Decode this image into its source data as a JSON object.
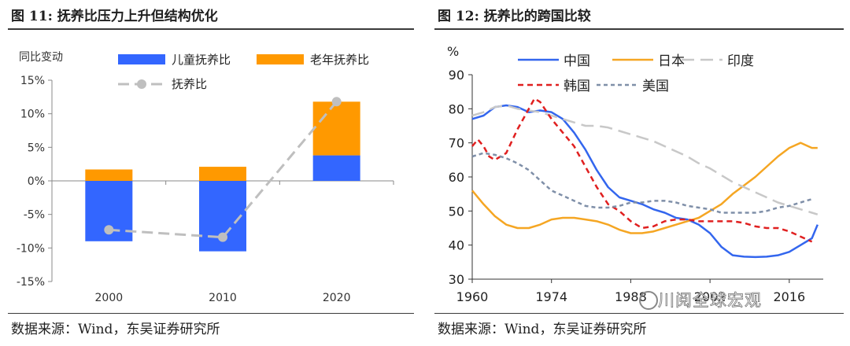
{
  "left": {
    "title": "图 11:  抚养比压力上升但结构优化",
    "source": "数据来源：Wind，东吴证券研究所"
  },
  "right": {
    "title": "图 12:   抚养比的跨国比较",
    "source": "数据来源：Wind，东吴证券研究所"
  },
  "watermark": "川阅全球宏观",
  "chart_data": [
    {
      "type": "bar",
      "stacked": true,
      "ylabel": "同比变动",
      "categories": [
        "2000",
        "2010",
        "2020"
      ],
      "ylim": [
        -15,
        15
      ],
      "yticks": [
        -15,
        -10,
        -5,
        0,
        5,
        10,
        15
      ],
      "ytick_labels": [
        "-15%",
        "-10%",
        "-5%",
        "0%",
        "5%",
        "10%",
        "15%"
      ],
      "series": [
        {
          "name": "儿童抚养比",
          "kind": "bar",
          "color": "#3366ff",
          "values": [
            -9.0,
            -10.5,
            3.8
          ]
        },
        {
          "name": "老年抚养比",
          "kind": "bar",
          "color": "#ff9900",
          "values": [
            1.7,
            2.1,
            8.0
          ]
        },
        {
          "name": "抚养比",
          "kind": "line",
          "color": "#bfbfbf",
          "values": [
            -7.3,
            -8.4,
            11.8
          ]
        }
      ],
      "legend_position": "top"
    },
    {
      "type": "line",
      "ylabel": "%",
      "xlim": [
        1960,
        2022
      ],
      "xticks": [
        1960,
        1974,
        1988,
        2002,
        2016
      ],
      "ylim": [
        30,
        90
      ],
      "yticks": [
        30,
        40,
        50,
        60,
        70,
        80,
        90
      ],
      "series": [
        {
          "name": "中国",
          "color": "#3366ee",
          "dash": "solid",
          "x": [
            1960,
            1962,
            1964,
            1966,
            1968,
            1970,
            1972,
            1974,
            1976,
            1978,
            1980,
            1982,
            1984,
            1986,
            1988,
            1990,
            1992,
            1994,
            1996,
            1998,
            2000,
            2002,
            2004,
            2006,
            2008,
            2010,
            2012,
            2014,
            2016,
            2018,
            2020,
            2021
          ],
          "y": [
            77,
            78,
            80.5,
            81,
            80.5,
            79,
            79.5,
            79,
            77,
            73,
            68,
            62,
            57,
            54,
            53,
            52,
            50.5,
            49.5,
            48,
            47.5,
            46,
            43.5,
            39.5,
            37,
            36.6,
            36.5,
            36.6,
            37,
            38,
            40,
            42,
            46
          ]
        },
        {
          "name": "日本",
          "color": "#f5a623",
          "dash": "solid",
          "x": [
            1960,
            1962,
            1964,
            1966,
            1968,
            1970,
            1972,
            1974,
            1976,
            1978,
            1980,
            1982,
            1984,
            1986,
            1988,
            1990,
            1992,
            1994,
            1996,
            1998,
            2000,
            2002,
            2004,
            2006,
            2008,
            2010,
            2012,
            2014,
            2016,
            2018,
            2020,
            2021
          ],
          "y": [
            56,
            52,
            48.5,
            46,
            45,
            45,
            46,
            47.5,
            48,
            48,
            47.5,
            47,
            46,
            44.5,
            43.5,
            43.5,
            44,
            45,
            46,
            47,
            48,
            50,
            52,
            55,
            57.5,
            60,
            63,
            66,
            68.5,
            70,
            68.5,
            68.5
          ]
        },
        {
          "name": "印度",
          "color": "#c8c8c8",
          "dash": "long",
          "x": [
            1960,
            1962,
            1964,
            1966,
            1968,
            1970,
            1972,
            1974,
            1976,
            1978,
            1980,
            1982,
            1984,
            1986,
            1988,
            1990,
            1992,
            1994,
            1996,
            1998,
            2000,
            2002,
            2004,
            2006,
            2008,
            2010,
            2012,
            2014,
            2016,
            2018,
            2020,
            2021
          ],
          "y": [
            78,
            79,
            80.5,
            81,
            80,
            79.5,
            79,
            78,
            77,
            76,
            75,
            75,
            74.5,
            73.5,
            72.5,
            71.5,
            70.5,
            69,
            67.5,
            66,
            64,
            62.5,
            60.5,
            58.5,
            57,
            55.5,
            54,
            52.5,
            51.5,
            50.5,
            49.5,
            49
          ]
        },
        {
          "name": "韩国",
          "color": "#e02020",
          "dash": "short",
          "x": [
            1960,
            1961,
            1962,
            1963,
            1964,
            1966,
            1968,
            1970,
            1971,
            1972,
            1974,
            1976,
            1978,
            1980,
            1982,
            1984,
            1986,
            1988,
            1990,
            1992,
            1994,
            1996,
            1998,
            2000,
            2002,
            2004,
            2006,
            2008,
            2010,
            2012,
            2014,
            2016,
            2018,
            2020
          ],
          "y": [
            69,
            71,
            69,
            66,
            65,
            67,
            74,
            80,
            83,
            82,
            77,
            73,
            69,
            63,
            57,
            52,
            50,
            47,
            45,
            45.5,
            47,
            47.5,
            47.5,
            47,
            47,
            47,
            47,
            46.5,
            45.5,
            45,
            45,
            44,
            42.5,
            41
          ]
        },
        {
          "name": "美国",
          "color": "#7f8fa8",
          "dash": "dot",
          "x": [
            1960,
            1962,
            1964,
            1966,
            1968,
            1970,
            1972,
            1974,
            1976,
            1978,
            1980,
            1982,
            1984,
            1986,
            1988,
            1990,
            1992,
            1994,
            1996,
            1998,
            2000,
            2002,
            2004,
            2006,
            2008,
            2010,
            2012,
            2014,
            2016,
            2018,
            2020
          ],
          "y": [
            66,
            67,
            66.5,
            65.5,
            64,
            62,
            59,
            56,
            54.5,
            53,
            51.5,
            51,
            51,
            51.5,
            52.5,
            52.5,
            53,
            53,
            52.5,
            51.5,
            51,
            50.5,
            49.5,
            49.5,
            49.5,
            49.5,
            50,
            51,
            51.5,
            52.5,
            53.5
          ]
        }
      ],
      "legend_position": "top"
    }
  ]
}
